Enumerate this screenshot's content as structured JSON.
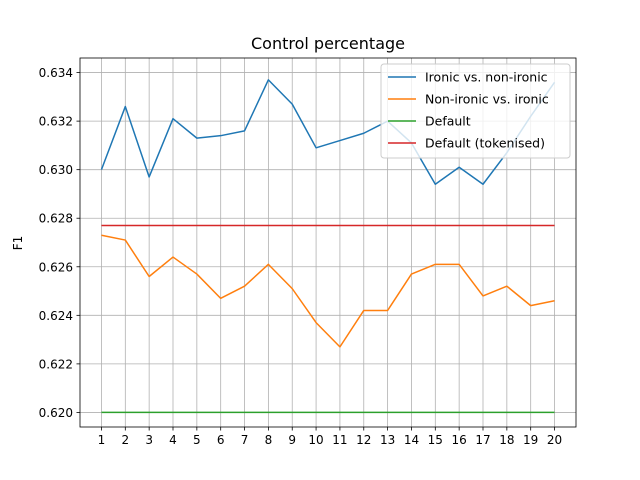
{
  "chart_data": {
    "type": "line",
    "title": "Control percentage",
    "xlabel": "",
    "ylabel": "F1",
    "x": [
      1,
      2,
      3,
      4,
      5,
      6,
      7,
      8,
      9,
      10,
      11,
      12,
      13,
      14,
      15,
      16,
      17,
      18,
      19,
      20
    ],
    "xticks": [
      "1",
      "2",
      "3",
      "4",
      "5",
      "6",
      "7",
      "8",
      "9",
      "10",
      "11",
      "12",
      "13",
      "14",
      "15",
      "16",
      "17",
      "18",
      "19",
      "20"
    ],
    "yticks": [
      "0.620",
      "0.622",
      "0.624",
      "0.626",
      "0.628",
      "0.630",
      "0.632",
      "0.634"
    ],
    "ytick_values": [
      0.62,
      0.622,
      0.624,
      0.626,
      0.628,
      0.63,
      0.632,
      0.634
    ],
    "xlim": [
      0.1,
      20.9
    ],
    "ylim": [
      0.6194,
      0.6346
    ],
    "grid": true,
    "legend_position": "top-right",
    "series": [
      {
        "name": "Ironic vs. non-ironic",
        "color": "#1f77b4",
        "values": [
          0.63,
          0.6326,
          0.6297,
          0.6321,
          0.6313,
          0.6314,
          0.6316,
          0.6337,
          0.6327,
          0.6309,
          0.6312,
          0.6315,
          0.632,
          0.6311,
          0.6294,
          0.6301,
          0.6294,
          0.6307,
          0.6322,
          0.6336
        ]
      },
      {
        "name": "Non-ironic vs. ironic",
        "color": "#ff7f0e",
        "values": [
          0.6273,
          0.6271,
          0.6256,
          0.6264,
          0.6257,
          0.6247,
          0.6252,
          0.6261,
          0.6251,
          0.6237,
          0.6227,
          0.6242,
          0.6242,
          0.6257,
          0.6261,
          0.6261,
          0.6248,
          0.6252,
          0.6244,
          0.6246
        ]
      },
      {
        "name": "Default",
        "color": "#2ca02c",
        "values": [
          0.62,
          0.62,
          0.62,
          0.62,
          0.62,
          0.62,
          0.62,
          0.62,
          0.62,
          0.62,
          0.62,
          0.62,
          0.62,
          0.62,
          0.62,
          0.62,
          0.62,
          0.62,
          0.62,
          0.62
        ]
      },
      {
        "name": "Default (tokenised)",
        "color": "#d62728",
        "values": [
          0.6277,
          0.6277,
          0.6277,
          0.6277,
          0.6277,
          0.6277,
          0.6277,
          0.6277,
          0.6277,
          0.6277,
          0.6277,
          0.6277,
          0.6277,
          0.6277,
          0.6277,
          0.6277,
          0.6277,
          0.6277,
          0.6277,
          0.6277
        ]
      }
    ]
  }
}
